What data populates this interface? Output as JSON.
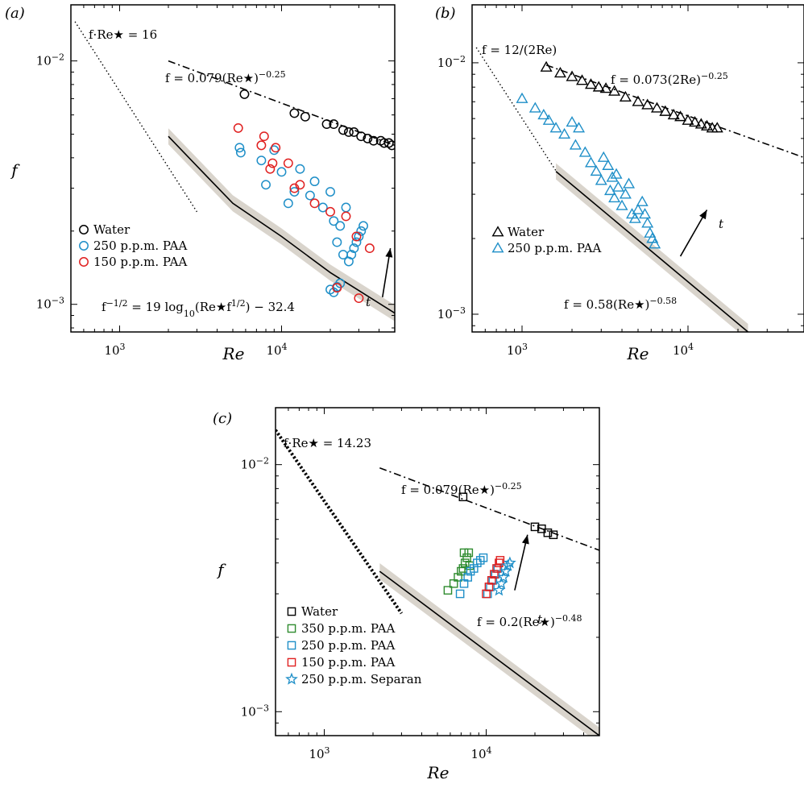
{
  "chart_data": [
    {
      "id": "a",
      "type": "scatter",
      "panel_label": "(a)",
      "xlabel": "Re",
      "ylabel": "f",
      "xlog": true,
      "ylog": true,
      "xlim": [
        500,
        50000
      ],
      "ylim": [
        0.00077,
        0.017
      ],
      "x_ticks": [
        {
          "v": 1000,
          "label": "10",
          "exp": "3"
        },
        {
          "v": 10000,
          "label": "10",
          "exp": "4"
        }
      ],
      "y_ticks": [
        {
          "v": 0.001,
          "label": "10",
          "exp": "−3"
        },
        {
          "v": 0.01,
          "label": "10",
          "exp": "−2"
        }
      ],
      "annotations": [
        {
          "text": "f·Re★ = 16"
        },
        {
          "text": "f = 0.079(Re★)",
          "sup": "−0.25"
        },
        {
          "text": "f",
          "sup": "−1/2",
          "text2": " = 19 log",
          "sub": "10",
          "text3": "(Re★f",
          "sup2": "1/2",
          "text4": ") − 32.4"
        },
        {
          "text": "t"
        }
      ],
      "lines": [
        {
          "style": "dotted",
          "points": [
            [
              530,
              0.0145
            ],
            [
              3000,
              0.0024
            ]
          ]
        },
        {
          "style": "dashdot",
          "points": [
            [
              2000,
              0.01
            ],
            [
              50000,
              0.0045
            ]
          ]
        },
        {
          "style": "solid",
          "band": true,
          "points": [
            [
              2000,
              0.0049
            ],
            [
              3000,
              0.0037
            ],
            [
              5000,
              0.0026
            ],
            [
              10000,
              0.0019
            ],
            [
              20000,
              0.00135
            ],
            [
              50000,
              0.00092
            ]
          ]
        }
      ],
      "arrow": {
        "from": [
          42000,
          0.00107
        ],
        "to": [
          47000,
          0.0017
        ]
      },
      "series": [
        {
          "name": "Water",
          "marker": "circle",
          "color": "#000000",
          "points": [
            [
              5900,
              0.0073
            ],
            [
              12000,
              0.0061
            ],
            [
              14000,
              0.0059
            ],
            [
              19000,
              0.0055
            ],
            [
              21000,
              0.0055
            ],
            [
              24000,
              0.0052
            ],
            [
              26000,
              0.0051
            ],
            [
              28000,
              0.0051
            ],
            [
              31000,
              0.0049
            ],
            [
              34000,
              0.0048
            ],
            [
              37000,
              0.0047
            ],
            [
              41000,
              0.0047
            ],
            [
              43000,
              0.0046
            ],
            [
              46000,
              0.0046
            ],
            [
              48000,
              0.0045
            ]
          ]
        },
        {
          "name": "250 p.p.m. PAA",
          "marker": "circle",
          "color": "#1f8fc8",
          "points": [
            [
              5600,
              0.0042
            ],
            [
              5500,
              0.0044
            ],
            [
              7500,
              0.0039
            ],
            [
              8000,
              0.0031
            ],
            [
              9000,
              0.0043
            ],
            [
              10000,
              0.0035
            ],
            [
              11000,
              0.0026
            ],
            [
              12000,
              0.0029
            ],
            [
              13000,
              0.0036
            ],
            [
              15000,
              0.0028
            ],
            [
              16000,
              0.0032
            ],
            [
              18000,
              0.0025
            ],
            [
              20000,
              0.0029
            ],
            [
              21000,
              0.0022
            ],
            [
              22000,
              0.0018
            ],
            [
              23000,
              0.0021
            ],
            [
              24000,
              0.0016
            ],
            [
              25000,
              0.0025
            ],
            [
              26000,
              0.0015
            ],
            [
              27000,
              0.0016
            ],
            [
              28000,
              0.0017
            ],
            [
              29000,
              0.0018
            ],
            [
              30000,
              0.0019
            ],
            [
              31000,
              0.002
            ],
            [
              32000,
              0.0021
            ],
            [
              20000,
              0.00115
            ],
            [
              21000,
              0.00112
            ],
            [
              22000,
              0.00118
            ],
            [
              23000,
              0.00122
            ]
          ]
        },
        {
          "name": "150 p.p.m. PAA",
          "marker": "circle",
          "color": "#e02020",
          "points": [
            [
              5400,
              0.0053
            ],
            [
              7500,
              0.0045
            ],
            [
              7800,
              0.0049
            ],
            [
              8500,
              0.0036
            ],
            [
              8800,
              0.0038
            ],
            [
              9200,
              0.0044
            ],
            [
              11000,
              0.0038
            ],
            [
              12000,
              0.003
            ],
            [
              13000,
              0.0031
            ],
            [
              16000,
              0.0026
            ],
            [
              20000,
              0.0024
            ],
            [
              25000,
              0.0023
            ],
            [
              29000,
              0.0019
            ],
            [
              35000,
              0.0017
            ],
            [
              22000,
              0.00117
            ],
            [
              30000,
              0.00106
            ]
          ]
        }
      ],
      "legend_position": "lower-left"
    },
    {
      "id": "b",
      "type": "scatter",
      "panel_label": "(b)",
      "xlabel": "Re",
      "ylabel": "",
      "xlog": true,
      "ylog": true,
      "xlim": [
        500,
        50000
      ],
      "ylim": [
        0.00085,
        0.017
      ],
      "x_ticks": [
        {
          "v": 1000,
          "label": "10",
          "exp": "3"
        },
        {
          "v": 10000,
          "label": "10",
          "exp": "4"
        }
      ],
      "y_ticks": [
        {
          "v": 0.001,
          "label": "10",
          "exp": "−3"
        },
        {
          "v": 0.01,
          "label": "10",
          "exp": "−2"
        }
      ],
      "annotations": [
        {
          "text": "f = 12/(2Re)"
        },
        {
          "text": "f = 0.073(2Re)",
          "sup": "−0.25"
        },
        {
          "text": "f = 0.58(Re★)",
          "sup": "−0.58"
        },
        {
          "text": "t"
        }
      ],
      "lines": [
        {
          "style": "dotted",
          "points": [
            [
              530,
              0.0115
            ],
            [
              1800,
              0.0033
            ]
          ]
        },
        {
          "style": "dashdot",
          "points": [
            [
              1400,
              0.0098
            ],
            [
              50000,
              0.0042
            ]
          ]
        },
        {
          "style": "solid",
          "band": true,
          "points": [
            [
              1600,
              0.0037
            ],
            [
              23000,
              0.00085
            ]
          ]
        }
      ],
      "arrow": {
        "from": [
          9000,
          0.0017
        ],
        "to": [
          13000,
          0.0026
        ]
      },
      "series": [
        {
          "name": "Water",
          "marker": "triangle",
          "color": "#000000",
          "points": [
            [
              1400,
              0.0096
            ],
            [
              1700,
              0.0091
            ],
            [
              2000,
              0.0088
            ],
            [
              2300,
              0.0085
            ],
            [
              2600,
              0.0082
            ],
            [
              2900,
              0.008
            ],
            [
              3200,
              0.0079
            ],
            [
              3600,
              0.0077
            ],
            [
              4200,
              0.0073
            ],
            [
              5000,
              0.007
            ],
            [
              5700,
              0.0068
            ],
            [
              6500,
              0.0066
            ],
            [
              7300,
              0.0064
            ],
            [
              8200,
              0.0062
            ],
            [
              9000,
              0.0061
            ],
            [
              10000,
              0.0059
            ],
            [
              11000,
              0.0058
            ],
            [
              12000,
              0.0057
            ],
            [
              13000,
              0.0056
            ],
            [
              14000,
              0.0055
            ],
            [
              15000,
              0.0055
            ]
          ]
        },
        {
          "name": "250 p.p.m. PAA",
          "marker": "triangle",
          "color": "#1f8fc8",
          "points": [
            [
              1000,
              0.0072
            ],
            [
              1200,
              0.0066
            ],
            [
              1350,
              0.0062
            ],
            [
              1450,
              0.0059
            ],
            [
              1600,
              0.0055
            ],
            [
              1800,
              0.0052
            ],
            [
              2000,
              0.0058
            ],
            [
              2100,
              0.0047
            ],
            [
              2200,
              0.0055
            ],
            [
              2400,
              0.0044
            ],
            [
              2600,
              0.004
            ],
            [
              2800,
              0.0037
            ],
            [
              3000,
              0.0034
            ],
            [
              3100,
              0.0042
            ],
            [
              3300,
              0.0039
            ],
            [
              3400,
              0.0031
            ],
            [
              3500,
              0.0035
            ],
            [
              3600,
              0.0029
            ],
            [
              3700,
              0.0036
            ],
            [
              3800,
              0.0032
            ],
            [
              4000,
              0.0027
            ],
            [
              4200,
              0.003
            ],
            [
              4400,
              0.0033
            ],
            [
              4600,
              0.0025
            ],
            [
              4800,
              0.0024
            ],
            [
              5000,
              0.0026
            ],
            [
              5300,
              0.0028
            ],
            [
              5500,
              0.0025
            ],
            [
              5700,
              0.0023
            ],
            [
              5900,
              0.0021
            ],
            [
              6100,
              0.002
            ],
            [
              6300,
              0.0019
            ]
          ]
        }
      ],
      "legend_position": "center-left"
    },
    {
      "id": "c",
      "type": "scatter",
      "panel_label": "(c)",
      "xlabel": "Re",
      "ylabel": "f",
      "xlog": true,
      "ylog": true,
      "xlim": [
        500,
        50000
      ],
      "ylim": [
        0.0008,
        0.017
      ],
      "x_ticks": [
        {
          "v": 1000,
          "label": "10",
          "exp": "3"
        },
        {
          "v": 10000,
          "label": "10",
          "exp": "4"
        }
      ],
      "y_ticks": [
        {
          "v": 0.001,
          "label": "10",
          "exp": "−3"
        },
        {
          "v": 0.01,
          "label": "10",
          "exp": "−2"
        }
      ],
      "annotations": [
        {
          "text": "f·Re★ = 14.23"
        },
        {
          "text": "f = 0.079(Re★)",
          "sup": "−0.25"
        },
        {
          "text": "f = 0.2(Re★)",
          "sup": "−0.48"
        },
        {
          "text": "t"
        }
      ],
      "lines": [
        {
          "style": "dotted_thick",
          "points": [
            [
              500,
              0.0138
            ],
            [
              3000,
              0.0025
            ]
          ]
        },
        {
          "style": "dashdot",
          "points": [
            [
              2200,
              0.0097
            ],
            [
              50000,
              0.0045
            ]
          ]
        },
        {
          "style": "solid",
          "band": true,
          "points": [
            [
              2200,
              0.0037
            ],
            [
              50000,
              0.0008
            ]
          ]
        }
      ],
      "arrow": {
        "from": [
          15000,
          0.0031
        ],
        "to": [
          18000,
          0.0052
        ]
      },
      "series": [
        {
          "name": "Water",
          "marker": "square",
          "color": "#000000",
          "points": [
            [
              7200,
              0.0074
            ],
            [
              20000,
              0.0056
            ],
            [
              22000,
              0.0055
            ],
            [
              24000,
              0.0053
            ],
            [
              26000,
              0.0052
            ]
          ]
        },
        {
          "name": "350 p.p.m. PAA",
          "marker": "square",
          "color": "#2e8b2e",
          "points": [
            [
              5800,
              0.0031
            ],
            [
              6300,
              0.0033
            ],
            [
              6700,
              0.0035
            ],
            [
              7000,
              0.0037
            ],
            [
              7200,
              0.0038
            ],
            [
              7400,
              0.004
            ],
            [
              7600,
              0.0042
            ],
            [
              7800,
              0.0044
            ],
            [
              7300,
              0.0044
            ],
            [
              7900,
              0.0039
            ]
          ]
        },
        {
          "name": "250 p.p.m. PAA",
          "marker": "square",
          "color": "#1f8fc8",
          "points": [
            [
              6900,
              0.003
            ],
            [
              7300,
              0.0033
            ],
            [
              7700,
              0.0035
            ],
            [
              8000,
              0.0037
            ],
            [
              8400,
              0.0038
            ],
            [
              8800,
              0.004
            ],
            [
              9200,
              0.0041
            ],
            [
              9600,
              0.0042
            ],
            [
              10200,
              0.003
            ],
            [
              10600,
              0.0032
            ],
            [
              11000,
              0.0034
            ],
            [
              11400,
              0.0036
            ],
            [
              11800,
              0.0038
            ]
          ]
        },
        {
          "name": "150 p.p.m. PAA",
          "marker": "square",
          "color": "#e02020",
          "points": [
            [
              10000,
              0.003
            ],
            [
              10400,
              0.0032
            ],
            [
              10800,
              0.0034
            ],
            [
              11200,
              0.0036
            ],
            [
              11600,
              0.0038
            ],
            [
              12000,
              0.004
            ],
            [
              12200,
              0.0041
            ]
          ]
        },
        {
          "name": "250 p.p.m. Separan",
          "marker": "star",
          "color": "#1f8fc8",
          "points": [
            [
              12000,
              0.0031
            ],
            [
              12400,
              0.0033
            ],
            [
              12800,
              0.0035
            ],
            [
              13200,
              0.0037
            ],
            [
              13600,
              0.0039
            ],
            [
              14000,
              0.004
            ]
          ]
        }
      ],
      "legend_position": "lower-left"
    }
  ]
}
